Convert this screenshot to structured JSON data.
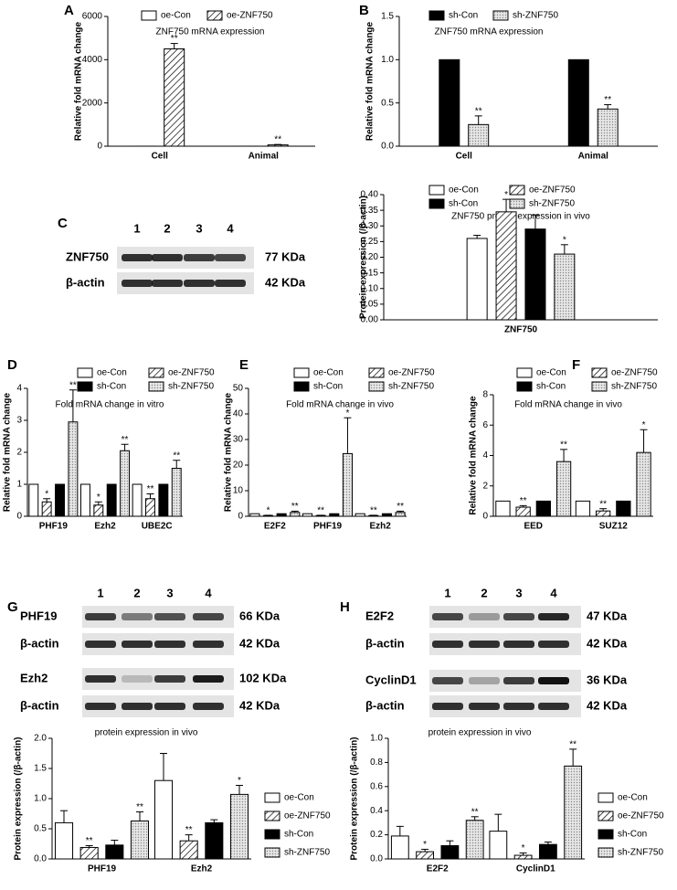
{
  "chart_data": [
    {
      "type": "bar",
      "label": "A",
      "title": "ZNF750 mRNA expression",
      "y_label": "Relative fold mRNA change",
      "categories": [
        "Cell",
        "Animal"
      ],
      "ylim": [
        0,
        6000
      ],
      "yticks": [
        0,
        2000,
        4000,
        6000
      ],
      "series": [
        {
          "name": "oe-Con",
          "color": "#ffffff",
          "values": [
            1,
            1
          ]
        },
        {
          "name": "oe-ZNF750",
          "color": "#ffffff",
          "pattern": "hatch",
          "values": [
            4500,
            60
          ],
          "errors": [
            250,
            20
          ],
          "annotations": [
            "**",
            "**"
          ]
        }
      ]
    },
    {
      "type": "bar",
      "label": "B",
      "title": "ZNF750 mRNA expression",
      "y_label": "Relative fold mRNA change",
      "categories": [
        "Cell",
        "Animal"
      ],
      "ylim": [
        0,
        1.5
      ],
      "yticks": [
        {
          "value": 0,
          "label": "0.0"
        },
        {
          "value": 0.5,
          "label": "0.5"
        },
        {
          "value": 1,
          "label": "1.0"
        },
        {
          "value": 1.5,
          "label": "1.5"
        }
      ],
      "series": [
        {
          "name": "sh-Con",
          "color": "#000000",
          "values": [
            1,
            1
          ]
        },
        {
          "name": "sh-ZNF750",
          "color": "#ffffff",
          "pattern": "dots",
          "values": [
            0.25,
            0.43
          ],
          "errors": [
            0.1,
            0.05
          ],
          "annotations": [
            "**",
            "**"
          ]
        }
      ]
    },
    {
      "type": "bar",
      "title": "ZNF750 protein expression in vivo",
      "y_label": "Protein expression (/β-actin)",
      "categories": [
        "ZNF750"
      ],
      "ylim": [
        0,
        0.4
      ],
      "yticks": [
        {
          "value": 0,
          "label": "0.00"
        },
        {
          "value": 0.05,
          "label": "0.05"
        },
        {
          "value": 0.1,
          "label": "0.10"
        },
        {
          "value": 0.15,
          "label": "0.15"
        },
        {
          "value": 0.2,
          "label": "0.20"
        },
        {
          "value": 0.25,
          "label": "0.25"
        },
        {
          "value": 0.3,
          "label": "0.30"
        },
        {
          "value": 0.35,
          "label": "0.35"
        },
        {
          "value": 0.4,
          "label": "0.40"
        }
      ],
      "series": [
        {
          "name": "oe-Con",
          "color": "#ffffff",
          "values": [
            0.26
          ],
          "errors": [
            0.01
          ]
        },
        {
          "name": "oe-ZNF750",
          "color": "#ffffff",
          "pattern": "hatch",
          "values": [
            0.345
          ],
          "errors": [
            0.04
          ],
          "annotations": [
            "*"
          ]
        },
        {
          "name": "sh-Con",
          "color": "#000000",
          "values": [
            0.29
          ],
          "errors": [
            0.045
          ]
        },
        {
          "name": "sh-ZNF750",
          "color": "#ffffff",
          "pattern": "dots",
          "values": [
            0.21
          ],
          "errors": [
            0.03
          ],
          "annotations": [
            "*"
          ]
        }
      ]
    },
    {
      "type": "bar",
      "label": "D",
      "title": "Fold mRNA change in vitro",
      "y_label": "Relative fold mRNA change",
      "categories": [
        "PHF19",
        "Ezh2",
        "UBE2C"
      ],
      "ylim": [
        0,
        4
      ],
      "yticks": [
        0,
        1,
        2,
        3,
        4
      ],
      "series": [
        {
          "name": "oe-Con",
          "color": "#ffffff",
          "values": [
            1,
            1,
            1
          ]
        },
        {
          "name": "oe-ZNF750",
          "color": "#ffffff",
          "pattern": "hatch",
          "values": [
            0.45,
            0.35,
            0.55
          ],
          "errors": [
            0.1,
            0.1,
            0.15
          ],
          "annotations": [
            "*",
            "*",
            "**"
          ]
        },
        {
          "name": "sh-Con",
          "color": "#000000",
          "values": [
            1,
            1,
            1
          ]
        },
        {
          "name": "sh-ZNF750",
          "color": "#ffffff",
          "pattern": "dots",
          "values": [
            2.95,
            2.05,
            1.5
          ],
          "errors": [
            1.0,
            0.2,
            0.25
          ],
          "annotations": [
            "**",
            "**",
            "**"
          ]
        }
      ]
    },
    {
      "type": "bar",
      "label": "E",
      "title": "Fold mRNA change in vivo",
      "y_label": "Relative fold mRNA change",
      "categories": [
        "E2F2",
        "PHF19",
        "Ezh2"
      ],
      "ylim": [
        0,
        50
      ],
      "yticks": [
        0,
        10,
        20,
        30,
        40,
        50
      ],
      "series": [
        {
          "name": "oe-Con",
          "color": "#ffffff",
          "values": [
            1,
            1,
            1
          ]
        },
        {
          "name": "oe-ZNF750",
          "color": "#ffffff",
          "pattern": "hatch",
          "values": [
            0.3,
            0.3,
            0.3
          ],
          "errors": [
            0.1,
            0.1,
            0.1
          ],
          "annotations": [
            "*",
            "**",
            "**"
          ]
        },
        {
          "name": "sh-Con",
          "color": "#000000",
          "values": [
            1,
            1,
            1
          ]
        },
        {
          "name": "sh-ZNF750",
          "color": "#ffffff",
          "pattern": "dots",
          "values": [
            1.5,
            24.5,
            1.5
          ],
          "errors": [
            0.5,
            14,
            0.5
          ],
          "annotations": [
            "**",
            "*",
            "**"
          ]
        }
      ]
    },
    {
      "type": "bar",
      "label": "F",
      "title": "Fold mRNA change in vivo",
      "y_label": "Relative fold mRNA change",
      "categories": [
        "EED",
        "SUZ12"
      ],
      "ylim": [
        0,
        8
      ],
      "yticks": [
        0,
        2,
        4,
        6,
        8
      ],
      "series": [
        {
          "name": "oe-Con",
          "color": "#ffffff",
          "values": [
            1,
            1
          ]
        },
        {
          "name": "oe-ZNF750",
          "color": "#ffffff",
          "pattern": "hatch",
          "values": [
            0.6,
            0.35
          ],
          "errors": [
            0.1,
            0.15
          ],
          "annotations": [
            "**",
            "**"
          ]
        },
        {
          "name": "sh-Con",
          "color": "#000000",
          "values": [
            1,
            1
          ]
        },
        {
          "name": "sh-ZNF750",
          "color": "#ffffff",
          "pattern": "dots",
          "values": [
            3.6,
            4.2
          ],
          "errors": [
            0.8,
            1.5
          ],
          "annotations": [
            "**",
            "*"
          ]
        }
      ]
    },
    {
      "type": "bar",
      "title": "protein expression in vivo",
      "y_label": "Protein expression (/β-actin)",
      "categories": [
        "PHF19",
        "Ezh2"
      ],
      "ylim": [
        0,
        2
      ],
      "yticks": [
        {
          "value": 0,
          "label": "0.0"
        },
        {
          "value": 0.5,
          "label": "0.5"
        },
        {
          "value": 1,
          "label": "1.0"
        },
        {
          "value": 1.5,
          "label": "1.5"
        },
        {
          "value": 2,
          "label": "2.0"
        }
      ],
      "series": [
        {
          "name": "oe-Con",
          "color": "#ffffff",
          "values": [
            0.6,
            1.3
          ],
          "errors": [
            0.2,
            0.45
          ]
        },
        {
          "name": "oe-ZNF750",
          "color": "#ffffff",
          "pattern": "hatch",
          "values": [
            0.19,
            0.3
          ],
          "errors": [
            0.03,
            0.1
          ],
          "annotations": [
            "**",
            "**"
          ]
        },
        {
          "name": "sh-Con",
          "color": "#000000",
          "values": [
            0.23,
            0.6
          ],
          "errors": [
            0.08,
            0.05
          ]
        },
        {
          "name": "sh-ZNF750",
          "color": "#ffffff",
          "pattern": "dots",
          "values": [
            0.63,
            1.07
          ],
          "errors": [
            0.15,
            0.15
          ],
          "annotations": [
            "**",
            "*"
          ]
        }
      ]
    },
    {
      "type": "bar",
      "title": "protein expression in vivo",
      "y_label": "Protein expression (/β-actin)",
      "categories": [
        "E2F2",
        "CyclinD1"
      ],
      "ylim": [
        0,
        1
      ],
      "yticks": [
        {
          "value": 0,
          "label": "0.0"
        },
        {
          "value": 0.2,
          "label": "0.2"
        },
        {
          "value": 0.4,
          "label": "0.4"
        },
        {
          "value": 0.6,
          "label": "0.6"
        },
        {
          "value": 0.8,
          "label": "0.8"
        },
        {
          "value": 1,
          "label": "1.0"
        }
      ],
      "series": [
        {
          "name": "oe-Con",
          "color": "#ffffff",
          "values": [
            0.19,
            0.23
          ],
          "errors": [
            0.08,
            0.14
          ]
        },
        {
          "name": "oe-ZNF750",
          "color": "#ffffff",
          "pattern": "hatch",
          "values": [
            0.06,
            0.03
          ],
          "errors": [
            0.02,
            0.02
          ],
          "annotations": [
            "*",
            "*"
          ]
        },
        {
          "name": "sh-Con",
          "color": "#000000",
          "values": [
            0.11,
            0.12
          ],
          "errors": [
            0.04,
            0.02
          ]
        },
        {
          "name": "sh-ZNF750",
          "color": "#ffffff",
          "pattern": "dots",
          "values": [
            0.32,
            0.77
          ],
          "errors": [
            0.03,
            0.14
          ],
          "annotations": [
            "**",
            "**"
          ]
        }
      ]
    }
  ],
  "blots": [
    {
      "label": "C",
      "lanes": [
        "1",
        "2",
        "3",
        "4"
      ],
      "rows": [
        {
          "protein": "ZNF750",
          "size": "77 KDa"
        },
        {
          "protein": "β-actin",
          "size": "42 KDa"
        }
      ]
    },
    {
      "label": "G",
      "lanes": [
        "1",
        "2",
        "3",
        "4"
      ],
      "rows": [
        {
          "protein": "PHF19",
          "size": "66 KDa"
        },
        {
          "protein": "β-actin",
          "size": "42 KDa"
        },
        {
          "protein": "Ezh2",
          "size": "102 KDa"
        },
        {
          "protein": "β-actin",
          "size": "42 KDa"
        }
      ]
    },
    {
      "label": "H",
      "lanes": [
        "1",
        "2",
        "3",
        "4"
      ],
      "rows": [
        {
          "protein": "E2F2",
          "size": "47 KDa"
        },
        {
          "protein": "β-actin",
          "size": "42 KDa"
        },
        {
          "protein": "CyclinD1",
          "size": "36 KDa"
        },
        {
          "protein": "β-actin",
          "size": "42 KDa"
        }
      ]
    }
  ]
}
